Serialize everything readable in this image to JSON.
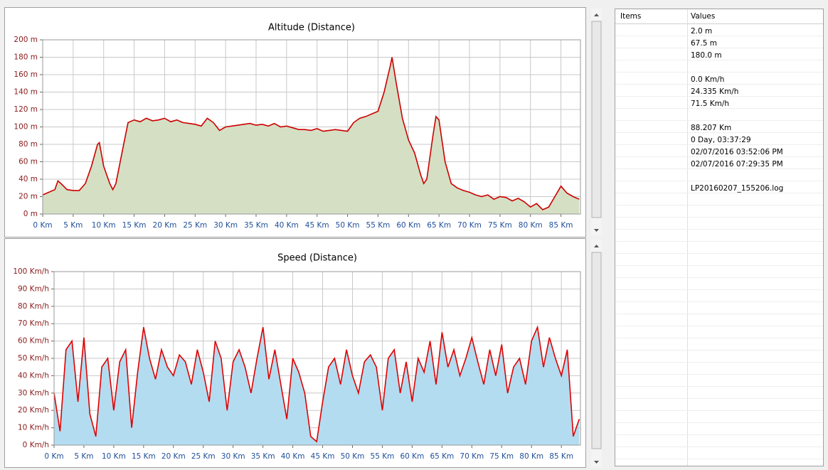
{
  "chart_data": [
    {
      "type": "area",
      "title": "Altitude (Distance)",
      "x": [
        0,
        1,
        2,
        2.5,
        3,
        4,
        5,
        6,
        7,
        8,
        9,
        9.3,
        10,
        11,
        11.5,
        12,
        13,
        14,
        15,
        16,
        17,
        18,
        19,
        20,
        21,
        22,
        23,
        24,
        25,
        26,
        27,
        28,
        29,
        30,
        31,
        32,
        33,
        34,
        35,
        36,
        37,
        38,
        39,
        40,
        41,
        42,
        43,
        44,
        45,
        46,
        47,
        48,
        49,
        50,
        51,
        52,
        53,
        54,
        55,
        56,
        57,
        57.3,
        58,
        59,
        60,
        61,
        62,
        62.5,
        63,
        64,
        64.5,
        65,
        66,
        67,
        68,
        69,
        70,
        71,
        72,
        73,
        74,
        75,
        76,
        77,
        78,
        79,
        80,
        81,
        82,
        83,
        84,
        85,
        86,
        87,
        88
      ],
      "values": [
        22,
        25,
        28,
        38,
        35,
        28,
        27,
        27,
        35,
        55,
        80,
        82,
        55,
        35,
        28,
        35,
        70,
        105,
        108,
        106,
        110,
        107,
        108,
        110,
        106,
        108,
        105,
        104,
        103,
        101,
        110,
        105,
        96,
        100,
        101,
        102,
        103,
        104,
        102,
        103,
        101,
        104,
        100,
        101,
        99,
        97,
        97,
        96,
        98,
        95,
        96,
        97,
        96,
        95,
        105,
        110,
        112,
        115,
        118,
        140,
        170,
        180,
        150,
        110,
        85,
        70,
        45,
        35,
        40,
        90,
        112,
        108,
        60,
        35,
        30,
        27,
        25,
        22,
        20,
        22,
        17,
        20,
        19,
        15,
        18,
        14,
        8,
        12,
        5,
        8,
        20,
        32,
        24,
        20,
        17
      ],
      "color": "#cc0000",
      "fill": "#d5dfc4",
      "xlim": [
        0,
        88.2
      ],
      "ylim": [
        0,
        200
      ],
      "xticks": [
        {
          "value": 0,
          "label": "0 Km"
        },
        {
          "value": 5,
          "label": "5 Km"
        },
        {
          "value": 10,
          "label": "10 Km"
        },
        {
          "value": 15,
          "label": "15 Km"
        },
        {
          "value": 20,
          "label": "20 Km"
        },
        {
          "value": 25,
          "label": "25 Km"
        },
        {
          "value": 30,
          "label": "30 Km"
        },
        {
          "value": 35,
          "label": "35 Km"
        },
        {
          "value": 40,
          "label": "40 Km"
        },
        {
          "value": 45,
          "label": "45 Km"
        },
        {
          "value": 50,
          "label": "50 Km"
        },
        {
          "value": 55,
          "label": "55 Km"
        },
        {
          "value": 60,
          "label": "60 Km"
        },
        {
          "value": 65,
          "label": "65 Km"
        },
        {
          "value": 70,
          "label": "70 Km"
        },
        {
          "value": 75,
          "label": "75 Km"
        },
        {
          "value": 80,
          "label": "80 Km"
        },
        {
          "value": 85,
          "label": "85 Km"
        }
      ],
      "yticks": [
        {
          "value": 0,
          "label": "0 m"
        },
        {
          "value": 20,
          "label": "20 m"
        },
        {
          "value": 40,
          "label": "40 m"
        },
        {
          "value": 60,
          "label": "60 m"
        },
        {
          "value": 80,
          "label": "80 m"
        },
        {
          "value": 100,
          "label": "100 m"
        },
        {
          "value": 120,
          "label": "120 m"
        },
        {
          "value": 140,
          "label": "140 m"
        },
        {
          "value": 160,
          "label": "160 m"
        },
        {
          "value": 180,
          "label": "180 m"
        },
        {
          "value": 200,
          "label": "200 m"
        }
      ],
      "grid": true
    },
    {
      "type": "area",
      "title": "Speed (Distance)",
      "x": [
        0,
        1,
        2,
        3,
        4,
        5,
        6,
        7,
        8,
        9,
        10,
        11,
        12,
        13,
        14,
        15,
        16,
        17,
        18,
        19,
        20,
        21,
        22,
        23,
        24,
        25,
        26,
        27,
        28,
        29,
        30,
        31,
        32,
        33,
        34,
        35,
        36,
        37,
        38,
        39,
        40,
        41,
        42,
        43,
        44,
        45,
        46,
        47,
        48,
        49,
        50,
        51,
        52,
        53,
        54,
        55,
        56,
        57,
        58,
        59,
        60,
        61,
        62,
        63,
        64,
        65,
        66,
        67,
        68,
        69,
        70,
        71,
        72,
        73,
        74,
        75,
        76,
        77,
        78,
        79,
        80,
        81,
        82,
        83,
        84,
        85,
        86,
        87,
        88
      ],
      "values": [
        30,
        8,
        55,
        60,
        25,
        62,
        18,
        5,
        45,
        50,
        20,
        48,
        55,
        10,
        42,
        68,
        50,
        38,
        55,
        45,
        40,
        52,
        48,
        35,
        55,
        42,
        25,
        60,
        50,
        20,
        48,
        55,
        45,
        30,
        50,
        68,
        38,
        55,
        35,
        15,
        50,
        42,
        30,
        5,
        2,
        25,
        45,
        50,
        35,
        55,
        40,
        30,
        48,
        52,
        45,
        20,
        50,
        55,
        30,
        48,
        25,
        50,
        42,
        60,
        35,
        65,
        45,
        55,
        40,
        50,
        62,
        48,
        35,
        55,
        40,
        58,
        30,
        45,
        50,
        35,
        60,
        68,
        45,
        62,
        50,
        40,
        55,
        5,
        15
      ],
      "color": "#e00000",
      "fill": "#b3dcf0",
      "xlim": [
        0,
        88.2
      ],
      "ylim": [
        0,
        100
      ],
      "xticks": [
        {
          "value": 0,
          "label": "0 Km"
        },
        {
          "value": 5,
          "label": "5 Km"
        },
        {
          "value": 10,
          "label": "10 Km"
        },
        {
          "value": 15,
          "label": "15 Km"
        },
        {
          "value": 20,
          "label": "20 Km"
        },
        {
          "value": 25,
          "label": "25 Km"
        },
        {
          "value": 30,
          "label": "30 Km"
        },
        {
          "value": 35,
          "label": "35 Km"
        },
        {
          "value": 40,
          "label": "40 Km"
        },
        {
          "value": 45,
          "label": "45 Km"
        },
        {
          "value": 50,
          "label": "50 Km"
        },
        {
          "value": 55,
          "label": "55 Km"
        },
        {
          "value": 60,
          "label": "60 Km"
        },
        {
          "value": 65,
          "label": "65 Km"
        },
        {
          "value": 70,
          "label": "70 Km"
        },
        {
          "value": 75,
          "label": "75 Km"
        },
        {
          "value": 80,
          "label": "80 Km"
        },
        {
          "value": 85,
          "label": "85 Km"
        }
      ],
      "yticks": [
        {
          "value": 0,
          "label": "0 Km/h"
        },
        {
          "value": 10,
          "label": "10 Km/h"
        },
        {
          "value": 20,
          "label": "20 Km/h"
        },
        {
          "value": 30,
          "label": "30 Km/h"
        },
        {
          "value": 40,
          "label": "40 Km/h"
        },
        {
          "value": 50,
          "label": "50 Km/h"
        },
        {
          "value": 60,
          "label": "60 Km/h"
        },
        {
          "value": 70,
          "label": "70 Km/h"
        },
        {
          "value": 80,
          "label": "80 Km/h"
        },
        {
          "value": 90,
          "label": "90 Km/h"
        },
        {
          "value": 100,
          "label": "100 Km/h"
        }
      ],
      "grid": true
    }
  ],
  "table": {
    "columns": [
      "Items",
      "Values"
    ],
    "rows": [
      "2.0 m",
      "67.5 m",
      "180.0 m",
      null,
      "0.0 Km/h",
      "24.335 Km/h",
      "71.5 Km/h",
      null,
      "88.207 Km",
      "0 Day, 03:37:29",
      "02/07/2016 03:52:06 PM",
      "02/07/2016 07:29:35 PM",
      null,
      "LP20160207_155206.log"
    ]
  }
}
